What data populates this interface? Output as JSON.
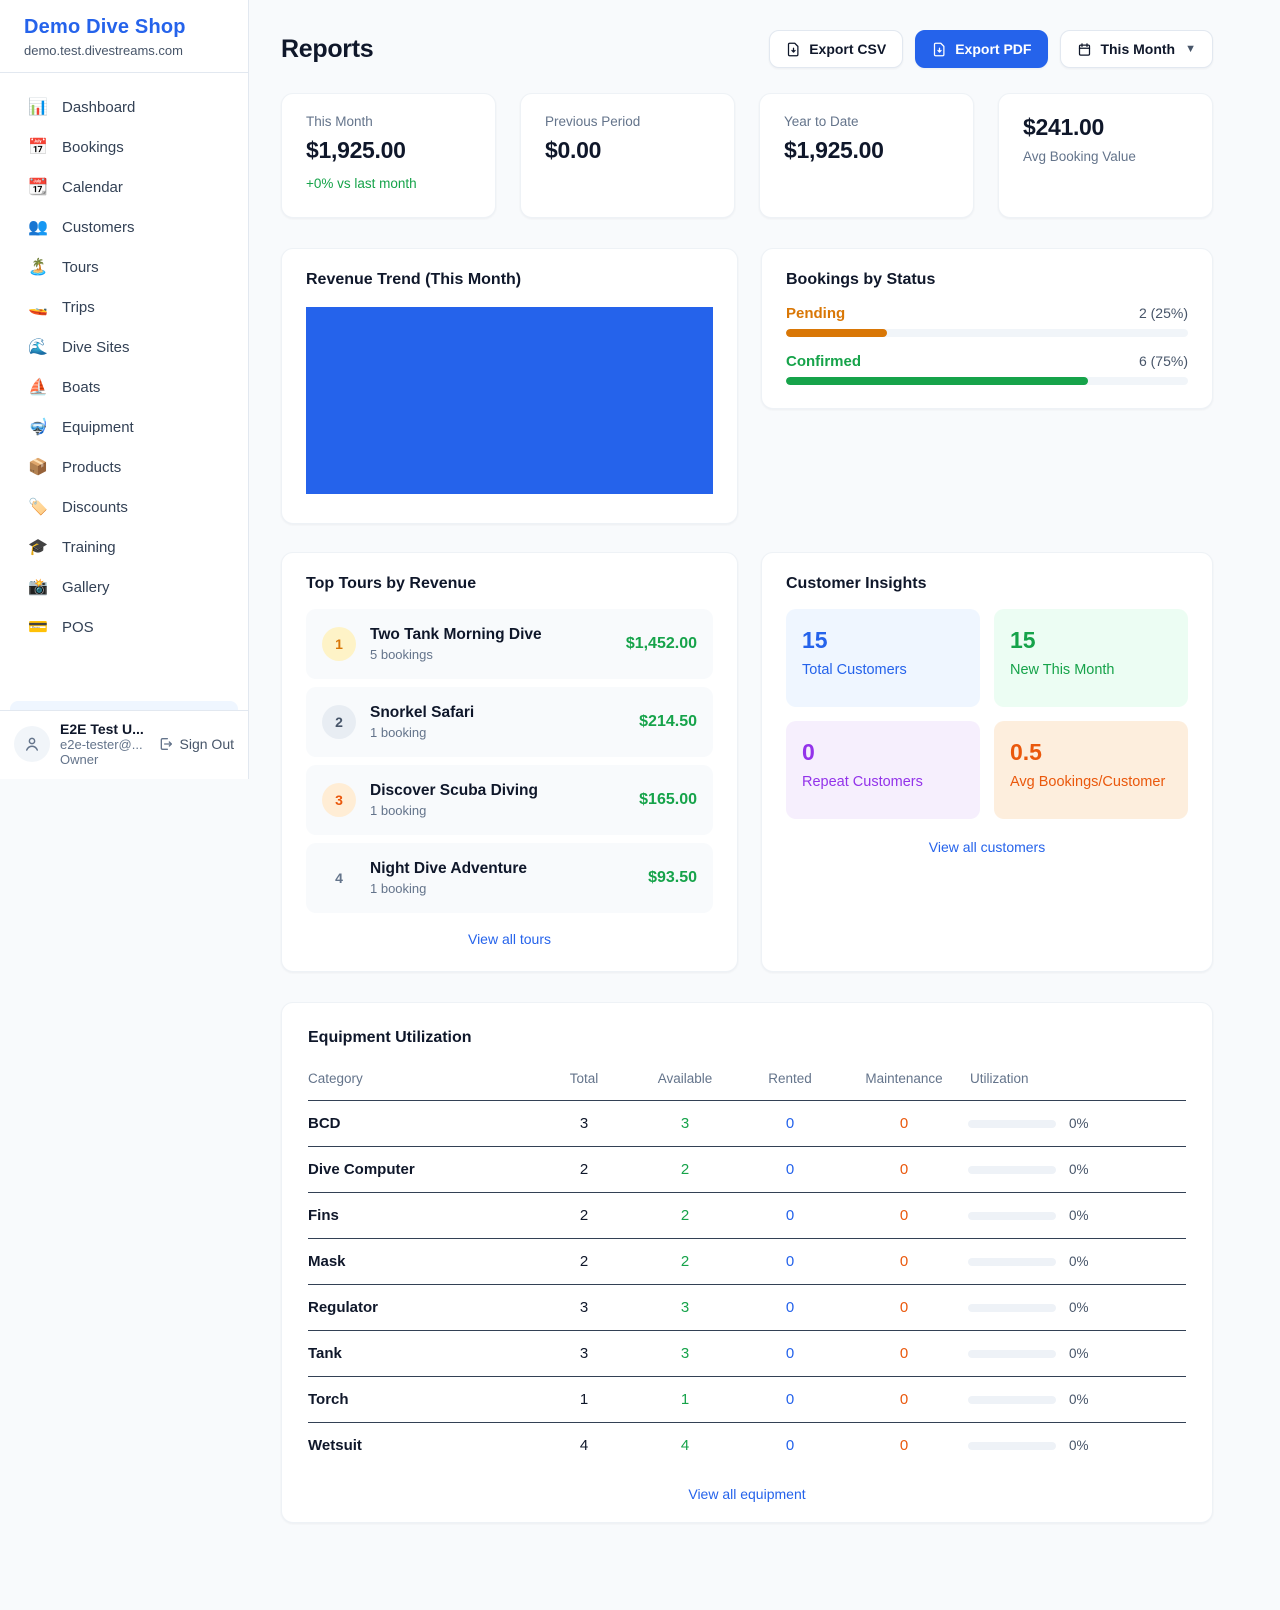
{
  "colors": {
    "accent": "#2563eb",
    "success": "#16a34a",
    "pending_amber": "#d97706",
    "orange": "#ea580c",
    "purple": "#9333ea"
  },
  "sidebar": {
    "brand": "Demo Dive Shop",
    "domain": "demo.test.divestreams.com",
    "items": [
      {
        "icon": "📊",
        "label": "Dashboard"
      },
      {
        "icon": "📅",
        "label": "Bookings"
      },
      {
        "icon": "📆",
        "label": "Calendar"
      },
      {
        "icon": "👥",
        "label": "Customers"
      },
      {
        "icon": "🏝️",
        "label": "Tours"
      },
      {
        "icon": "🚤",
        "label": "Trips"
      },
      {
        "icon": "🌊",
        "label": "Dive Sites"
      },
      {
        "icon": "⛵",
        "label": "Boats"
      },
      {
        "icon": "🤿",
        "label": "Equipment"
      },
      {
        "icon": "📦",
        "label": "Products"
      },
      {
        "icon": "🏷️",
        "label": "Discounts"
      },
      {
        "icon": "🎓",
        "label": "Training"
      },
      {
        "icon": "📸",
        "label": "Gallery"
      },
      {
        "icon": "💳",
        "label": "POS"
      }
    ],
    "user": {
      "name": "E2E Test U...",
      "email": "e2e-tester@...",
      "role": "Owner",
      "sign_out": "Sign Out"
    }
  },
  "header": {
    "title": "Reports",
    "export_csv": "Export CSV",
    "export_pdf": "Export PDF",
    "period": "This Month"
  },
  "stats": [
    {
      "label": "This Month",
      "value": "$1,925.00",
      "sub": "+0% vs last month"
    },
    {
      "label": "Previous Period",
      "value": "$0.00"
    },
    {
      "label": "Year to Date",
      "value": "$1,925.00"
    },
    {
      "label": "Avg Booking Value",
      "value": "$241.00"
    }
  ],
  "revenue_trend": {
    "title": "Revenue Trend (This Month)",
    "bar_color": "#2563eb",
    "bar_fill_pct": 100
  },
  "bookings_by_status": {
    "title": "Bookings by Status",
    "rows": [
      {
        "label": "Pending",
        "value": "2 (25%)",
        "pct": 25
      },
      {
        "label": "Confirmed",
        "value": "6 (75%)",
        "pct": 75
      }
    ]
  },
  "top_tours": {
    "title": "Top Tours by Revenue",
    "rows": [
      {
        "rank": "1",
        "name": "Two Tank Morning Dive",
        "bookings": "5 bookings",
        "revenue": "$1,452.00"
      },
      {
        "rank": "2",
        "name": "Snorkel Safari",
        "bookings": "1 booking",
        "revenue": "$214.50"
      },
      {
        "rank": "3",
        "name": "Discover Scuba Diving",
        "bookings": "1 booking",
        "revenue": "$165.00"
      },
      {
        "rank": "4",
        "name": "Night Dive Adventure",
        "bookings": "1 booking",
        "revenue": "$93.50"
      }
    ],
    "view_all": "View all tours"
  },
  "customer_insights": {
    "title": "Customer Insights",
    "tiles": [
      {
        "value": "15",
        "label": "Total Customers",
        "color": "#2563eb"
      },
      {
        "value": "15",
        "label": "New This Month",
        "color": "#16a34a"
      },
      {
        "value": "0",
        "label": "Repeat Customers",
        "color": "#9333ea"
      },
      {
        "value": "0.5",
        "label": "Avg Bookings/Customer",
        "color": "#ea580c"
      }
    ],
    "view_all": "View all customers"
  },
  "equipment": {
    "title": "Equipment Utilization",
    "columns": [
      "Category",
      "Total",
      "Available",
      "Rented",
      "Maintenance",
      "Utilization"
    ],
    "rows": [
      {
        "category": "BCD",
        "total": "3",
        "available": "3",
        "rented": "0",
        "maintenance": "0",
        "utilization": "0%",
        "utilization_pct": 0
      },
      {
        "category": "Dive Computer",
        "total": "2",
        "available": "2",
        "rented": "0",
        "maintenance": "0",
        "utilization": "0%",
        "utilization_pct": 0
      },
      {
        "category": "Fins",
        "total": "2",
        "available": "2",
        "rented": "0",
        "maintenance": "0",
        "utilization": "0%",
        "utilization_pct": 0
      },
      {
        "category": "Mask",
        "total": "2",
        "available": "2",
        "rented": "0",
        "maintenance": "0",
        "utilization": "0%",
        "utilization_pct": 0
      },
      {
        "category": "Regulator",
        "total": "3",
        "available": "3",
        "rented": "0",
        "maintenance": "0",
        "utilization": "0%",
        "utilization_pct": 0
      },
      {
        "category": "Tank",
        "total": "3",
        "available": "3",
        "rented": "0",
        "maintenance": "0",
        "utilization": "0%",
        "utilization_pct": 0
      },
      {
        "category": "Torch",
        "total": "1",
        "available": "1",
        "rented": "0",
        "maintenance": "0",
        "utilization": "0%",
        "utilization_pct": 0
      },
      {
        "category": "Wetsuit",
        "total": "4",
        "available": "4",
        "rented": "0",
        "maintenance": "0",
        "utilization": "0%",
        "utilization_pct": 0
      }
    ],
    "view_all": "View all equipment"
  }
}
